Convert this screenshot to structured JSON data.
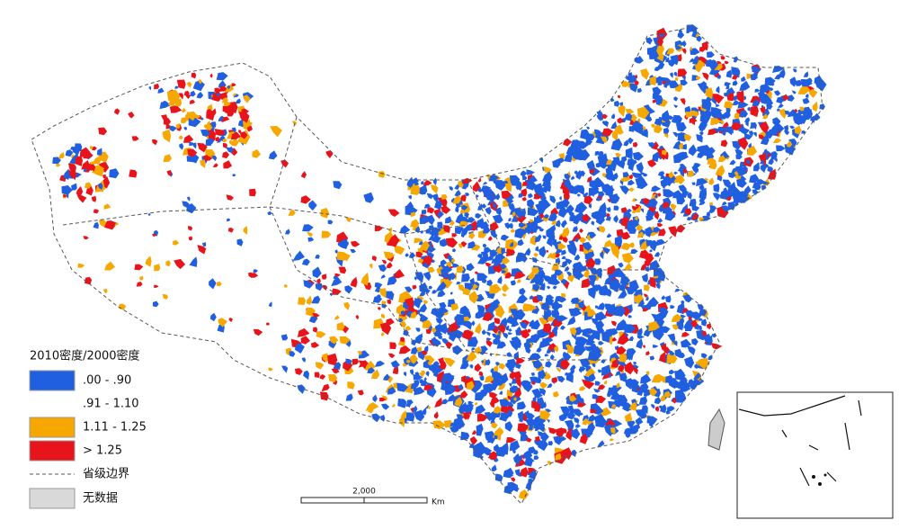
{
  "legend": {
    "title": "2010密度/2000密度",
    "items": [
      {
        "label": ".00 - .90",
        "color": "#1f5fe0"
      },
      {
        "label": ".91 - 1.10",
        "color": "#ffffff"
      },
      {
        "label": "1.11 - 1.25",
        "color": "#f6a800"
      },
      {
        "label": "> 1.25",
        "color": "#e8141b"
      },
      {
        "label": "省级边界"
      },
      {
        "label": "无数据",
        "color": "#d9d9d9"
      }
    ]
  },
  "scale_bar": {
    "distance": "2,000",
    "unit": "Km"
  }
}
